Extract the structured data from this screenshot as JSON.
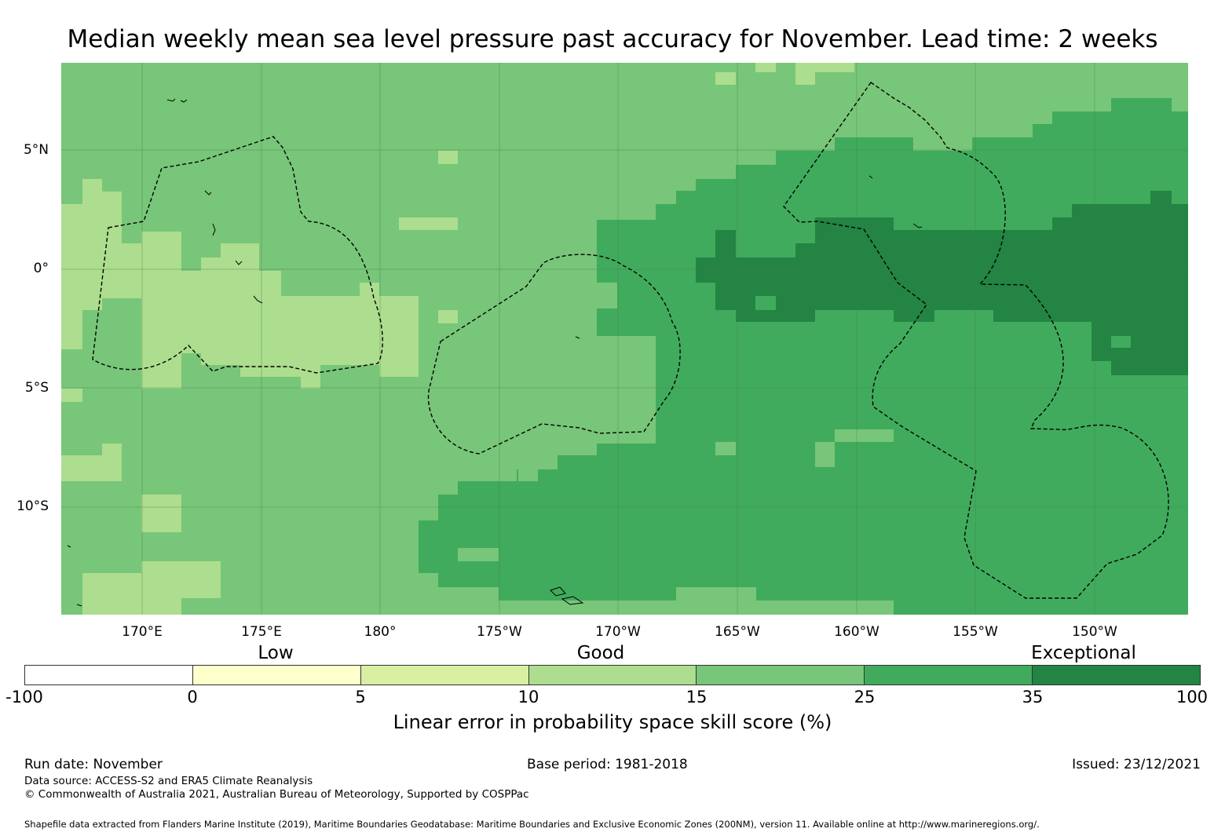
{
  "title": "Median weekly mean sea level pressure past accuracy for November. Lead time: 2 weeks",
  "map": {
    "lat_labels": [
      "5°N",
      "0°",
      "5°S",
      "10°S"
    ],
    "lon_labels": [
      "170°E",
      "175°E",
      "180°",
      "175°W",
      "170°W",
      "165°W",
      "160°W",
      "155°W",
      "150°W"
    ],
    "background_color": "#78c679"
  },
  "legend": {
    "categories": [
      "Low",
      "Good",
      "Exceptional"
    ],
    "ticks": [
      "-100",
      "0",
      "5",
      "10",
      "15",
      "25",
      "35",
      "100"
    ],
    "colors": [
      "#ffffff",
      "#ffffcc",
      "#d9f0a3",
      "#addd8e",
      "#78c679",
      "#41ab5d",
      "#238443"
    ],
    "label": "Linear error in probability space skill score (%)"
  },
  "footer": {
    "run_date": "Run date: November",
    "base_period": "Base period: 1981-2018",
    "issued": "Issued: 23/12/2021",
    "data_source": "Data source: ACCESS-S2 and ERA5 Climate Reanalysis",
    "copyright": "© Commonwealth of Australia 2021, Australian Bureau of Meteorology, Supported by COSPPac",
    "shapefile": "Shapefile data extracted from Flanders Marine Institute (2019), Maritime Boundaries Geodatabase: Maritime Boundaries and Exclusive Economic Zones (200NM), version 11. Available online at http://www.marineregions.org/."
  }
}
